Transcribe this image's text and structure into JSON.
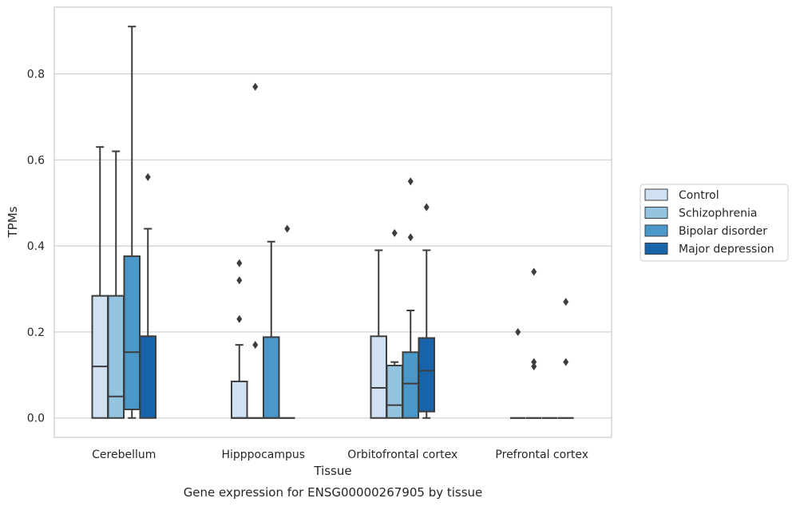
{
  "chart_data": {
    "type": "box",
    "xlabel": "Tissue",
    "ylabel": "TPMs",
    "caption": "Gene expression for ENSG00000267905 by tissue",
    "ylim": [
      -0.045,
      0.955
    ],
    "yticks": [
      "0.0",
      "0.2",
      "0.4",
      "0.6",
      "0.8"
    ],
    "grid": "horizontal",
    "legend_position": "right",
    "categories": [
      "Cerebellum",
      "Hipppocampus",
      "Orbitofrontal cortex",
      "Prefrontal cortex"
    ],
    "series": [
      {
        "name": "Control",
        "color": "#d0e1f2",
        "boxes": [
          {
            "whislo": 0.0,
            "q1": 0.0,
            "med": 0.12,
            "q3": 0.284,
            "whishi": 0.63,
            "fliers": []
          },
          {
            "whislo": 0.0,
            "q1": 0.0,
            "med": 0.0,
            "q3": 0.085,
            "whishi": 0.17,
            "fliers": [
              0.23,
              0.32,
              0.36
            ]
          },
          {
            "whislo": 0.0,
            "q1": 0.0,
            "med": 0.07,
            "q3": 0.19,
            "whishi": 0.39,
            "fliers": []
          },
          {
            "whislo": 0.0,
            "q1": 0.0,
            "med": 0.0,
            "q3": 0.0,
            "whishi": 0.0,
            "fliers": [
              0.2
            ]
          }
        ]
      },
      {
        "name": "Schizophrenia",
        "color": "#94c4df",
        "boxes": [
          {
            "whislo": 0.0,
            "q1": 0.0,
            "med": 0.05,
            "q3": 0.284,
            "whishi": 0.62,
            "fliers": []
          },
          {
            "whislo": 0.0,
            "q1": 0.0,
            "med": 0.0,
            "q3": 0.0,
            "whishi": 0.0,
            "fliers": [
              0.17,
              0.77
            ]
          },
          {
            "whislo": 0.0,
            "q1": 0.0,
            "med": 0.03,
            "q3": 0.122,
            "whishi": 0.13,
            "fliers": [
              0.43
            ]
          },
          {
            "whislo": 0.0,
            "q1": 0.0,
            "med": 0.0,
            "q3": 0.0,
            "whishi": 0.0,
            "fliers": [
              0.12,
              0.13,
              0.34
            ]
          }
        ]
      },
      {
        "name": "Bipolar disorder",
        "color": "#4a98c9",
        "boxes": [
          {
            "whislo": 0.0,
            "q1": 0.02,
            "med": 0.153,
            "q3": 0.376,
            "whishi": 0.91,
            "fliers": []
          },
          {
            "whislo": 0.0,
            "q1": 0.0,
            "med": 0.0,
            "q3": 0.188,
            "whishi": 0.41,
            "fliers": []
          },
          {
            "whislo": 0.0,
            "q1": 0.0,
            "med": 0.08,
            "q3": 0.153,
            "whishi": 0.25,
            "fliers": [
              0.42,
              0.55
            ]
          },
          {
            "whislo": 0.0,
            "q1": 0.0,
            "med": 0.0,
            "q3": 0.0,
            "whishi": 0.0,
            "fliers": []
          }
        ]
      },
      {
        "name": "Major depression",
        "color": "#1764ab",
        "boxes": [
          {
            "whislo": 0.0,
            "q1": 0.0,
            "med": 0.19,
            "q3": 0.19,
            "whishi": 0.44,
            "fliers": [
              0.56
            ]
          },
          {
            "whislo": 0.0,
            "q1": 0.0,
            "med": 0.0,
            "q3": 0.0,
            "whishi": 0.0,
            "fliers": [
              0.44
            ]
          },
          {
            "whislo": 0.0,
            "q1": 0.015,
            "med": 0.11,
            "q3": 0.186,
            "whishi": 0.39,
            "fliers": [
              0.49
            ]
          },
          {
            "whislo": 0.0,
            "q1": 0.0,
            "med": 0.0,
            "q3": 0.0,
            "whishi": 0.0,
            "fliers": [
              0.13,
              0.27
            ]
          }
        ]
      }
    ]
  }
}
